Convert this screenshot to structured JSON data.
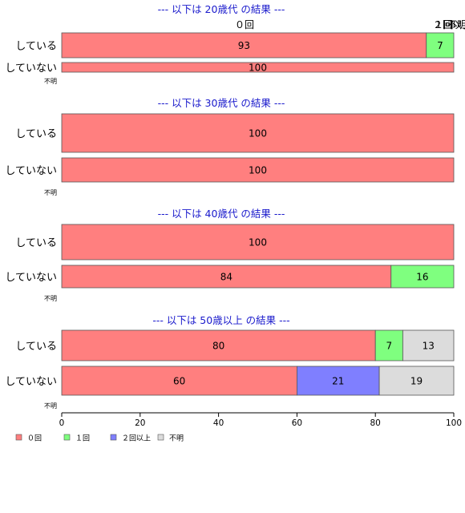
{
  "chart_data": {
    "type": "bar",
    "orientation": "horizontal",
    "stacked": true,
    "xlim": [
      0,
      100
    ],
    "x_ticks": [
      "0",
      "20",
      "40",
      "60",
      "80",
      "100"
    ],
    "legend_position": "bottom-left",
    "legend": [
      {
        "label": "０回",
        "color": "#ff7f7f"
      },
      {
        "label": "１回",
        "color": "#7fff7f"
      },
      {
        "label": "２回以上",
        "color": "#7f7fff"
      },
      {
        "label": "不明",
        "color": "#dcdcdc"
      }
    ],
    "top_annotations": [
      "０回",
      "１回",
      "２回以上",
      "不明"
    ],
    "groups": [
      {
        "title": "--- 以下は 20歳代 の結果 ---",
        "categories": [
          "している",
          "していない",
          "不明"
        ],
        "series": [
          {
            "name": "０回",
            "values": [
              93,
              100,
              0
            ]
          },
          {
            "name": "１回",
            "values": [
              7,
              0,
              0
            ]
          },
          {
            "name": "２回以上",
            "values": [
              0,
              0,
              0
            ]
          },
          {
            "name": "不明",
            "values": [
              0,
              0,
              0
            ]
          }
        ]
      },
      {
        "title": "--- 以下は 30歳代 の結果 ---",
        "categories": [
          "している",
          "していない",
          "不明"
        ],
        "series": [
          {
            "name": "０回",
            "values": [
              100,
              100,
              0
            ]
          },
          {
            "name": "１回",
            "values": [
              0,
              0,
              0
            ]
          },
          {
            "name": "２回以上",
            "values": [
              0,
              0,
              0
            ]
          },
          {
            "name": "不明",
            "values": [
              0,
              0,
              0
            ]
          }
        ]
      },
      {
        "title": "--- 以下は 40歳代 の結果 ---",
        "categories": [
          "している",
          "していない",
          "不明"
        ],
        "series": [
          {
            "name": "０回",
            "values": [
              100,
              84,
              0
            ]
          },
          {
            "name": "１回",
            "values": [
              0,
              16,
              0
            ]
          },
          {
            "name": "２回以上",
            "values": [
              0,
              0,
              0
            ]
          },
          {
            "name": "不明",
            "values": [
              0,
              0,
              0
            ]
          }
        ]
      },
      {
        "title": "--- 以下は 50歳以上 の結果 ---",
        "categories": [
          "している",
          "していない",
          "不明"
        ],
        "series": [
          {
            "name": "０回",
            "values": [
              80,
              60,
              0
            ]
          },
          {
            "name": "１回",
            "values": [
              7,
              0,
              0
            ]
          },
          {
            "name": "２回以上",
            "values": [
              0,
              21,
              0
            ]
          },
          {
            "name": "不明",
            "values": [
              13,
              19,
              0
            ]
          }
        ]
      }
    ]
  }
}
